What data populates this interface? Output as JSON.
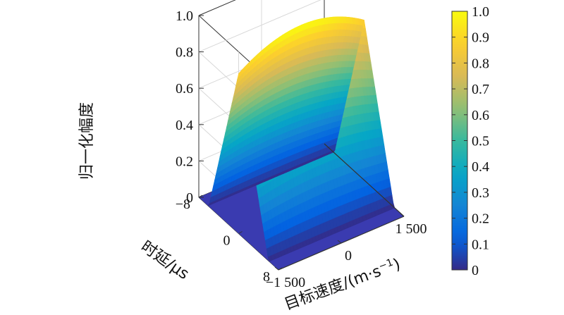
{
  "chart_data": {
    "type": "surface3d",
    "title": "",
    "zlabel": "归一化幅度",
    "xlabel": "时延/μs",
    "ylabel": "目标速度/(m·s",
    "ylabel_sup": "−1",
    "ylabel_close": ")",
    "x_ticks": [
      "−8",
      "0",
      "8"
    ],
    "y_ticks": [
      "−1 500",
      "0",
      "1 500"
    ],
    "z_ticks": [
      "0",
      "0.2",
      "0.4",
      "0.6",
      "0.8",
      "1.0"
    ],
    "xlim": [
      -8,
      8
    ],
    "ylim": [
      -1500,
      1500
    ],
    "zlim": [
      0,
      1
    ],
    "surface": {
      "description_peak_delay_us": 0,
      "peak_value": 1.0,
      "model": "triangular in delay, near-constant in velocity",
      "delay_support_us": [
        -6,
        6
      ]
    },
    "colorbar": {
      "ticks": [
        "0",
        "0.1",
        "0.2",
        "0.3",
        "0.4",
        "0.5",
        "0.6",
        "0.7",
        "0.8",
        "0.9",
        "1.0"
      ],
      "colormap": "parula",
      "range": [
        0,
        1
      ]
    },
    "colors": {
      "parula": [
        "#352a87",
        "#0363e1",
        "#1485d4",
        "#06a7c6",
        "#38b99e",
        "#92bf73",
        "#d9ba56",
        "#fcce2e",
        "#f9fb0e"
      ],
      "axis": "#333333",
      "grid": "#d8d8d8",
      "floor": "#3a3bb0"
    },
    "grid": true
  }
}
